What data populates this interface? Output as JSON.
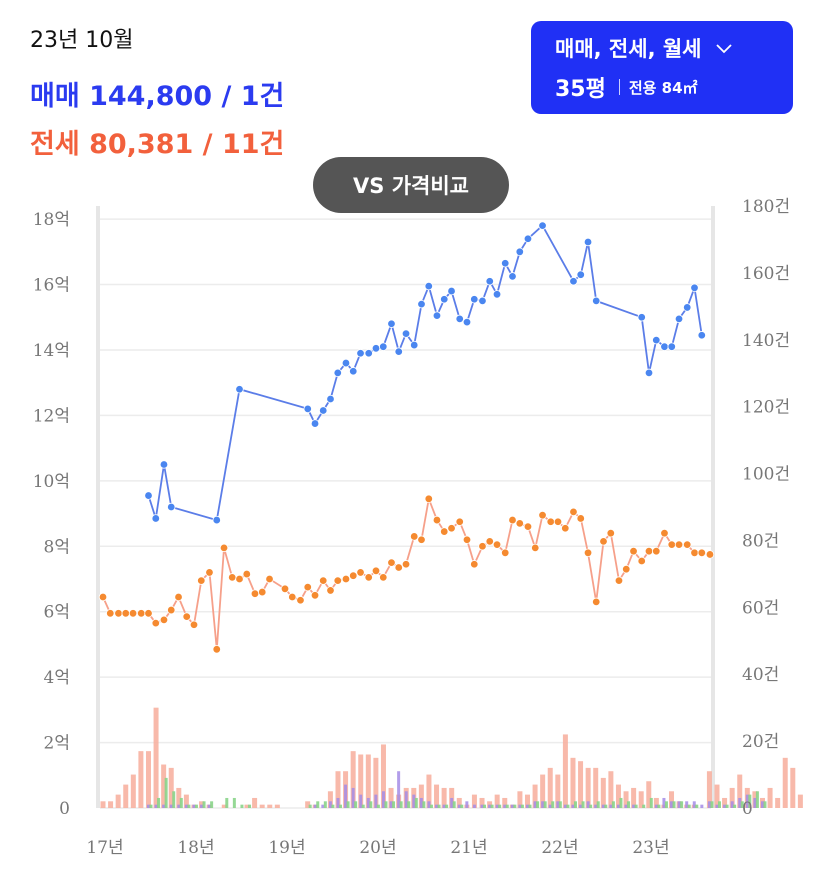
{
  "header": {
    "date": "23년 10월",
    "sale": {
      "label": "매매",
      "value": "144,800 / 1건"
    },
    "jeonse": {
      "label": "전세",
      "value": "80,381 / 11건"
    }
  },
  "filter": {
    "types": "매매, 전세, 월세",
    "chevron_icon": "chevron-down-icon",
    "size": "35평",
    "area": "전용 84㎡"
  },
  "vs_button": "VS 가격비교",
  "colors": {
    "sale": "#5b7de8",
    "sale_point": "#4a86f0",
    "jeonse": "#f6a08a",
    "jeonse_point": "#f58a30",
    "vol_jeonse": "#f7b1a1",
    "vol_sale": "#a48ce6",
    "vol_wolse": "#8ad48a"
  },
  "chart_data": {
    "type": "line",
    "y_left": {
      "ticks": [
        "0",
        "2억",
        "4억",
        "6억",
        "8억",
        "10억",
        "12억",
        "14억",
        "16억",
        "18억"
      ],
      "range": [
        0,
        18.4
      ]
    },
    "y_right": {
      "ticks": [
        "0",
        "20건",
        "40건",
        "60건",
        "80건",
        "100건",
        "120건",
        "140건",
        "160건",
        "180건"
      ],
      "range": [
        0,
        180
      ]
    },
    "x_ticks": [
      {
        "label": "17년",
        "t": 0
      },
      {
        "label": "18년",
        "t": 1
      },
      {
        "label": "19년",
        "t": 2
      },
      {
        "label": "20년",
        "t": 3
      },
      {
        "label": "21년",
        "t": 4
      },
      {
        "label": "22년",
        "t": 5
      },
      {
        "label": "23년",
        "t": 6
      }
    ],
    "series": [
      {
        "name": "매매",
        "x": [
          0.5,
          0.58,
          0.67,
          0.75,
          1.25,
          1.5,
          2.25,
          2.33,
          2.42,
          2.5,
          2.58,
          2.67,
          2.75,
          2.83,
          2.92,
          3.0,
          3.08,
          3.17,
          3.25,
          3.33,
          3.42,
          3.5,
          3.58,
          3.67,
          3.75,
          3.83,
          3.92,
          4.0,
          4.08,
          4.17,
          4.25,
          4.33,
          4.42,
          4.5,
          4.58,
          4.67,
          4.83,
          5.17,
          5.25,
          5.33,
          5.42,
          5.92,
          6.0,
          6.08,
          6.17,
          6.25,
          6.33,
          6.42,
          6.5,
          6.58
        ],
        "values": [
          9.55,
          8.85,
          10.5,
          9.2,
          8.8,
          12.8,
          12.2,
          11.75,
          12.15,
          12.5,
          13.3,
          13.6,
          13.35,
          13.9,
          13.9,
          14.05,
          14.1,
          14.8,
          13.95,
          14.5,
          14.15,
          15.4,
          15.95,
          15.05,
          15.55,
          15.8,
          14.95,
          14.85,
          15.55,
          15.5,
          16.1,
          15.7,
          16.65,
          16.25,
          17.0,
          17.4,
          17.8,
          16.1,
          16.3,
          17.3,
          15.5,
          15.0,
          13.3,
          14.3,
          14.1,
          14.1,
          14.95,
          15.3,
          15.9,
          14.45
        ]
      },
      {
        "name": "전세",
        "x": [
          0.0,
          0.08,
          0.17,
          0.25,
          0.33,
          0.42,
          0.5,
          0.58,
          0.67,
          0.75,
          0.83,
          0.92,
          1.0,
          1.08,
          1.17,
          1.25,
          1.33,
          1.42,
          1.5,
          1.58,
          1.67,
          1.75,
          1.83,
          2.0,
          2.08,
          2.17,
          2.25,
          2.33,
          2.42,
          2.5,
          2.58,
          2.67,
          2.75,
          2.83,
          2.92,
          3.0,
          3.08,
          3.17,
          3.25,
          3.33,
          3.42,
          3.5,
          3.58,
          3.67,
          3.75,
          3.83,
          3.92,
          4.0,
          4.08,
          4.17,
          4.25,
          4.33,
          4.42,
          4.5,
          4.58,
          4.67,
          4.75,
          4.83,
          4.92,
          5.0,
          5.08,
          5.17,
          5.25,
          5.33,
          5.42,
          5.5,
          5.58,
          5.67,
          5.75,
          5.83,
          5.92,
          6.0,
          6.08,
          6.17,
          6.25,
          6.33,
          6.42,
          6.5,
          6.58,
          6.67
        ],
        "values": [
          6.45,
          5.95,
          5.95,
          5.95,
          5.95,
          5.95,
          5.95,
          5.65,
          5.75,
          6.05,
          6.45,
          5.85,
          5.6,
          6.95,
          7.2,
          4.85,
          7.95,
          7.05,
          7.0,
          7.15,
          6.55,
          6.6,
          7.0,
          6.7,
          6.45,
          6.35,
          6.75,
          6.5,
          6.95,
          6.65,
          6.95,
          7.0,
          7.1,
          7.2,
          7.05,
          7.25,
          7.05,
          7.5,
          7.35,
          7.45,
          8.3,
          8.2,
          9.45,
          8.8,
          8.45,
          8.55,
          8.75,
          8.2,
          7.45,
          8.0,
          8.15,
          8.05,
          7.8,
          8.8,
          8.7,
          8.6,
          7.95,
          8.95,
          8.75,
          8.75,
          8.55,
          9.05,
          8.85,
          7.8,
          6.3,
          8.15,
          8.4,
          6.95,
          7.3,
          7.85,
          7.55,
          7.85,
          7.85,
          8.4,
          8.05,
          8.05,
          8.05,
          7.8,
          7.8,
          7.75
        ]
      }
    ],
    "volume": {
      "x_start": 0,
      "x_step": 0.0833,
      "jeonse": [
        2,
        2,
        4,
        7,
        10,
        17,
        17,
        30,
        13,
        12,
        6,
        4,
        1,
        2,
        1,
        0,
        1,
        0,
        0,
        1,
        3,
        1,
        1,
        1,
        0,
        0,
        0,
        2,
        1,
        0,
        5,
        11,
        11,
        17,
        16,
        16,
        15,
        19,
        6,
        4,
        6,
        6,
        7,
        10,
        7,
        6,
        6,
        3,
        1,
        4,
        3,
        2,
        4,
        3,
        1,
        5,
        4,
        7,
        10,
        12,
        10,
        22,
        15,
        14,
        12,
        12,
        9,
        11,
        7,
        5,
        6,
        5,
        8,
        3,
        1,
        5,
        2,
        1,
        1,
        0,
        11,
        7,
        3,
        6,
        10,
        6,
        5,
        3,
        6,
        3,
        15,
        12,
        4
      ],
      "sale": [
        0,
        0,
        0,
        0,
        0,
        0,
        1,
        1,
        1,
        1,
        1,
        1,
        1,
        1,
        1,
        0,
        0,
        0,
        0,
        0,
        0,
        0,
        0,
        0,
        0,
        0,
        0,
        0,
        1,
        1,
        2,
        3,
        7,
        6,
        4,
        3,
        4,
        5,
        2,
        11,
        5,
        4,
        3,
        2,
        1,
        1,
        3,
        1,
        2,
        1,
        1,
        1,
        1,
        1,
        1,
        1,
        1,
        2,
        2,
        1,
        2,
        1,
        1,
        1,
        2,
        1,
        1,
        1,
        1,
        1,
        1,
        0,
        0,
        1,
        3,
        2,
        2,
        2,
        2,
        1,
        2,
        1,
        1,
        2,
        3,
        4,
        3,
        2
      ],
      "wolse": [
        0,
        0,
        0,
        0,
        0,
        0,
        1,
        3,
        9,
        5,
        3,
        1,
        1,
        2,
        2,
        0,
        3,
        3,
        1,
        1,
        0,
        0,
        0,
        0,
        0,
        0,
        0,
        1,
        2,
        2,
        1,
        1,
        2,
        2,
        1,
        2,
        1,
        2,
        2,
        2,
        2,
        3,
        2,
        1,
        1,
        1,
        2,
        1,
        0,
        0,
        1,
        1,
        1,
        1,
        1,
        1,
        1,
        2,
        2,
        2,
        2,
        1,
        2,
        2,
        1,
        2,
        1,
        2,
        3,
        2,
        1,
        1,
        3,
        1,
        2,
        2,
        2,
        1,
        1,
        0,
        2,
        2,
        1,
        1,
        2,
        4,
        5,
        2
      ]
    }
  }
}
